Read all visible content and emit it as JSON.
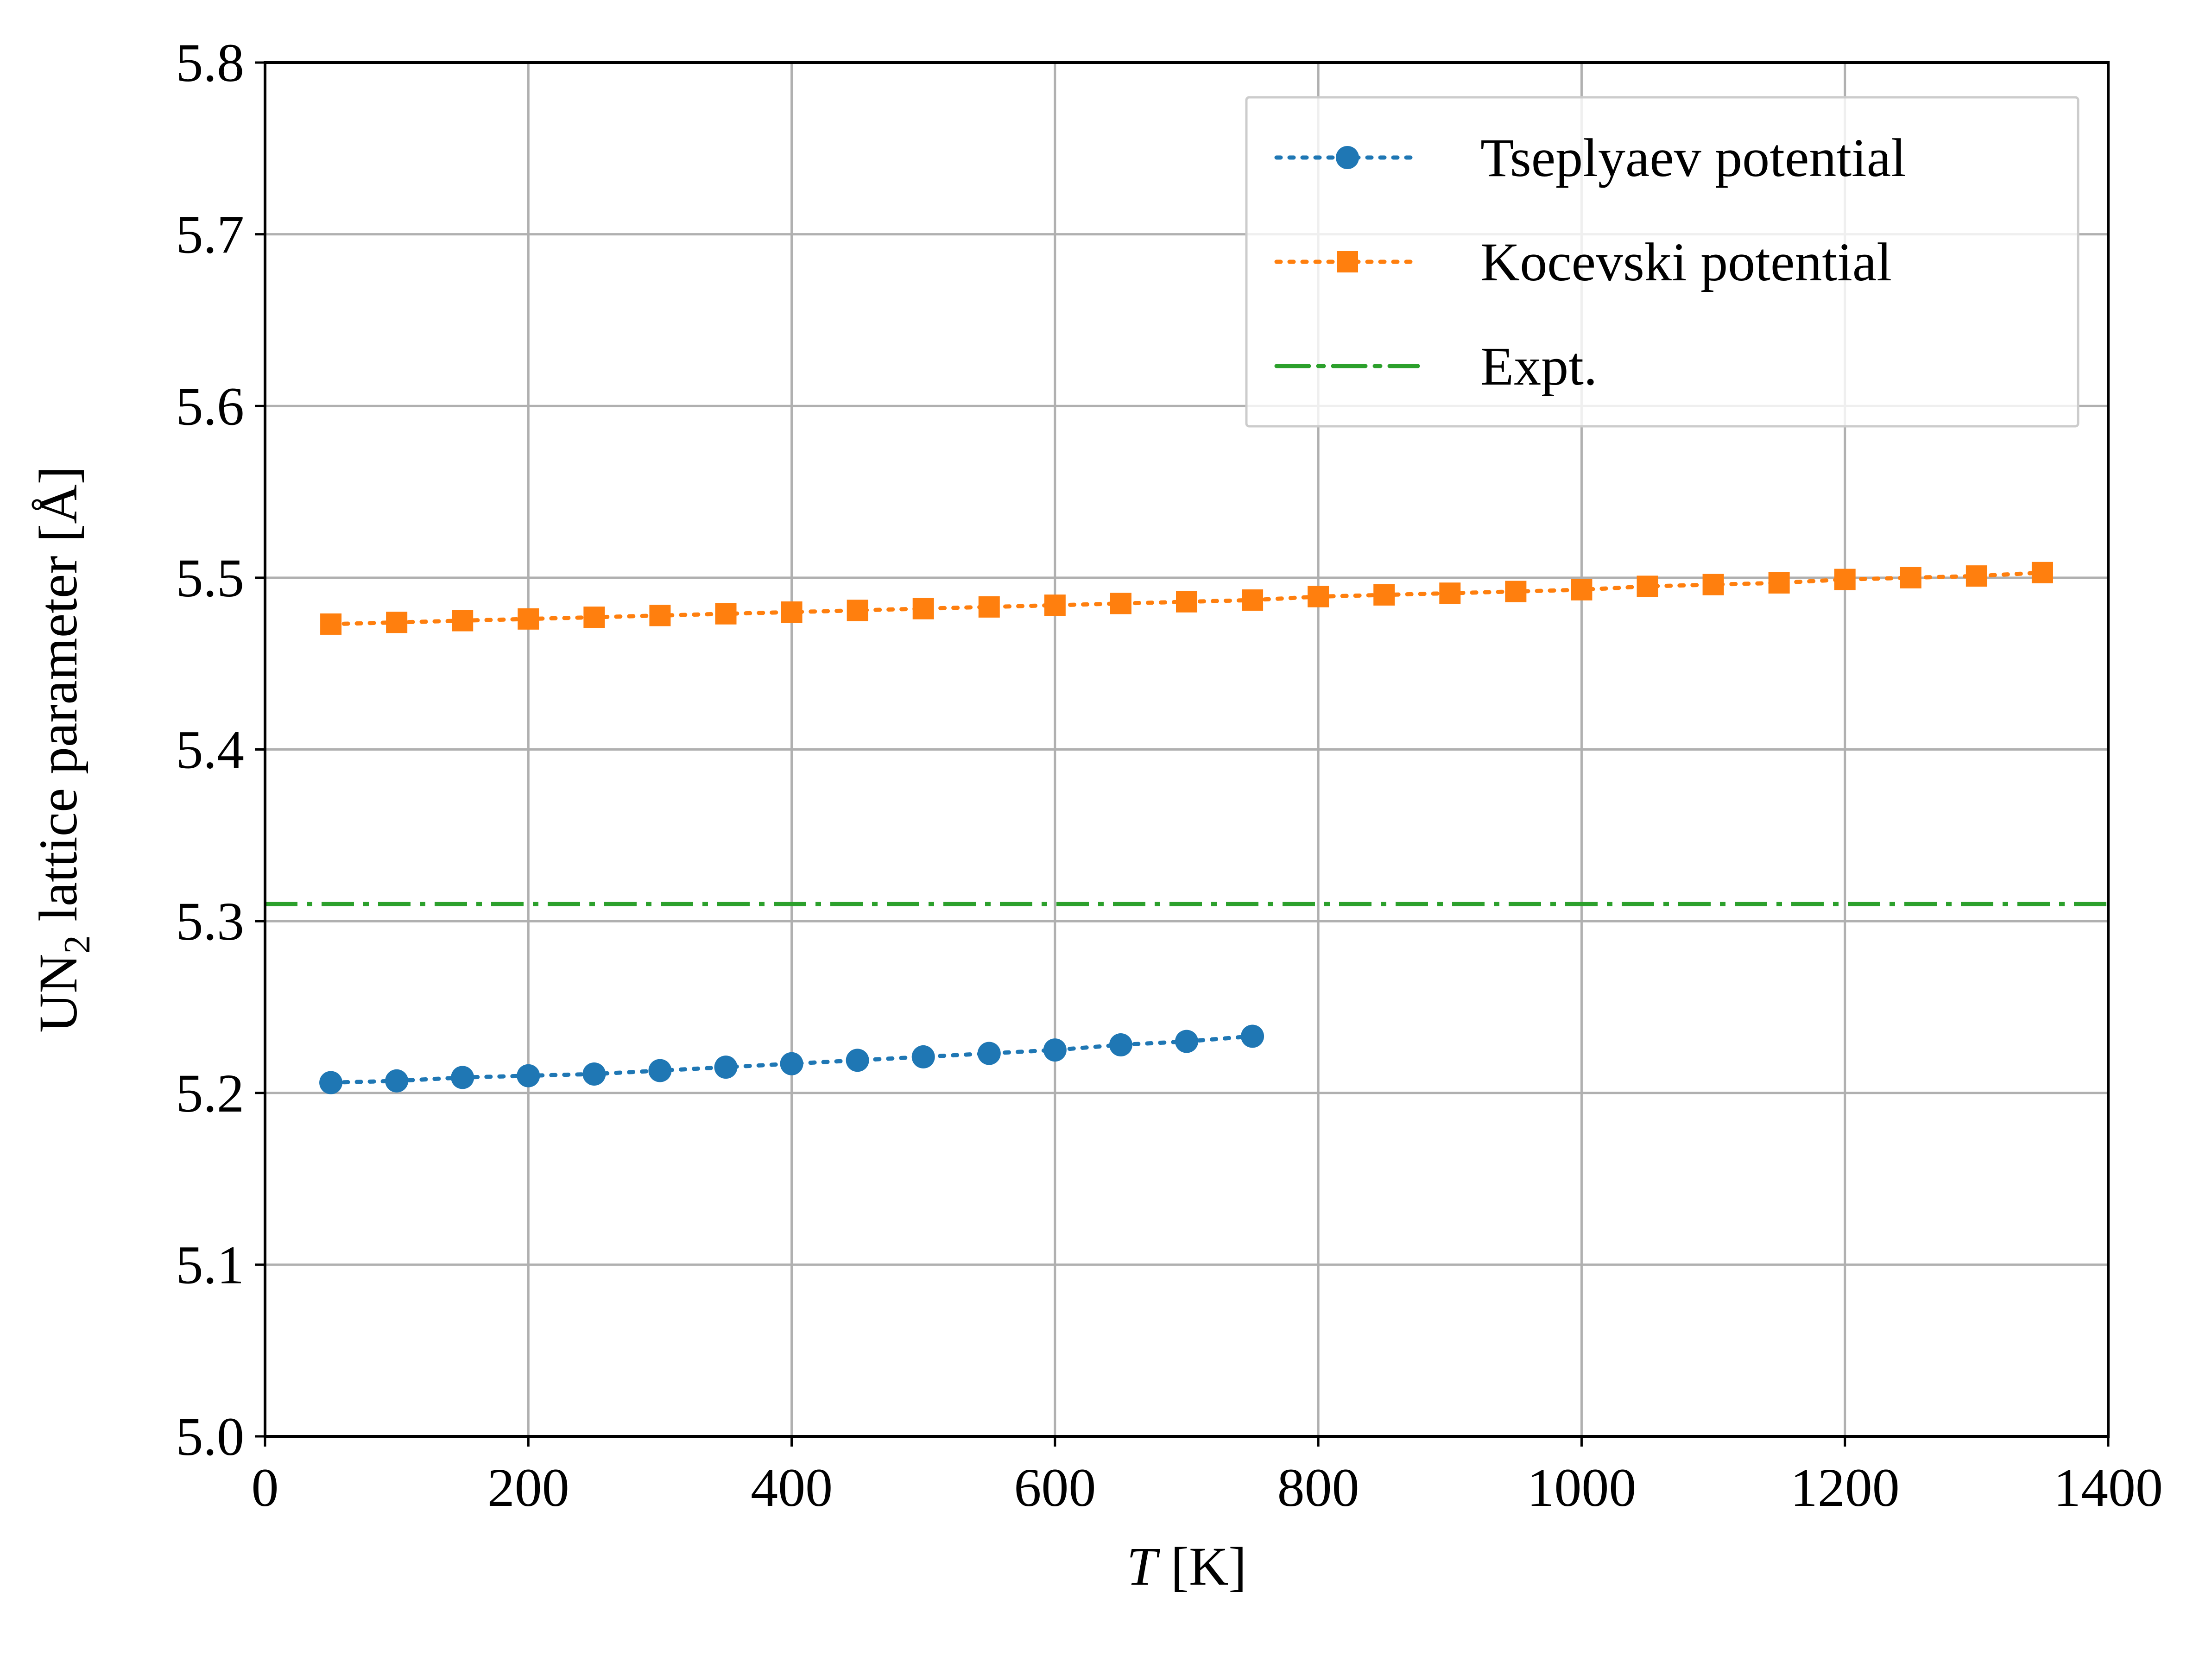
{
  "chart_data": {
    "type": "line",
    "xlabel": "T [K]",
    "xlabel_italic_part": "T",
    "xlabel_rest": " [K]",
    "ylabel_prefix": "UN",
    "ylabel_subscript": "2",
    "ylabel_suffix": " lattice parameter [Å]",
    "xlim": [
      0,
      1400
    ],
    "ylim": [
      5.0,
      5.8
    ],
    "xticks": [
      0,
      200,
      400,
      600,
      800,
      1000,
      1200,
      1400
    ],
    "xtick_labels": [
      "0",
      "200",
      "400",
      "600",
      "800",
      "1000",
      "1200",
      "1400"
    ],
    "yticks": [
      5.0,
      5.1,
      5.2,
      5.3,
      5.4,
      5.5,
      5.6,
      5.7,
      5.8
    ],
    "ytick_labels": [
      "5.0",
      "5.1",
      "5.2",
      "5.3",
      "5.4",
      "5.5",
      "5.6",
      "5.7",
      "5.8"
    ],
    "grid": true,
    "legend_position": "top-right",
    "series": [
      {
        "name": "Tseplyaev potential",
        "color": "#1f77b4",
        "marker": "circle",
        "linestyle": "dotted",
        "x": [
          50,
          100,
          150,
          200,
          250,
          300,
          350,
          400,
          450,
          500,
          550,
          600,
          650,
          700,
          750
        ],
        "y": [
          5.206,
          5.207,
          5.209,
          5.21,
          5.211,
          5.213,
          5.215,
          5.217,
          5.219,
          5.221,
          5.223,
          5.225,
          5.228,
          5.23,
          5.233
        ]
      },
      {
        "name": "Kocevski potential",
        "color": "#ff7f0e",
        "marker": "square",
        "linestyle": "dotted",
        "x": [
          50,
          100,
          150,
          200,
          250,
          300,
          350,
          400,
          450,
          500,
          550,
          600,
          650,
          700,
          750,
          800,
          850,
          900,
          950,
          1000,
          1050,
          1100,
          1150,
          1200,
          1250,
          1300,
          1350
        ],
        "y": [
          5.473,
          5.474,
          5.475,
          5.476,
          5.477,
          5.478,
          5.479,
          5.48,
          5.481,
          5.482,
          5.483,
          5.484,
          5.485,
          5.486,
          5.487,
          5.489,
          5.49,
          5.491,
          5.492,
          5.493,
          5.495,
          5.496,
          5.497,
          5.499,
          5.5,
          5.501,
          5.503
        ]
      },
      {
        "name": "Expt.",
        "color": "#2ca02c",
        "linestyle": "dashdot",
        "type": "hline",
        "y": 5.31
      }
    ]
  }
}
